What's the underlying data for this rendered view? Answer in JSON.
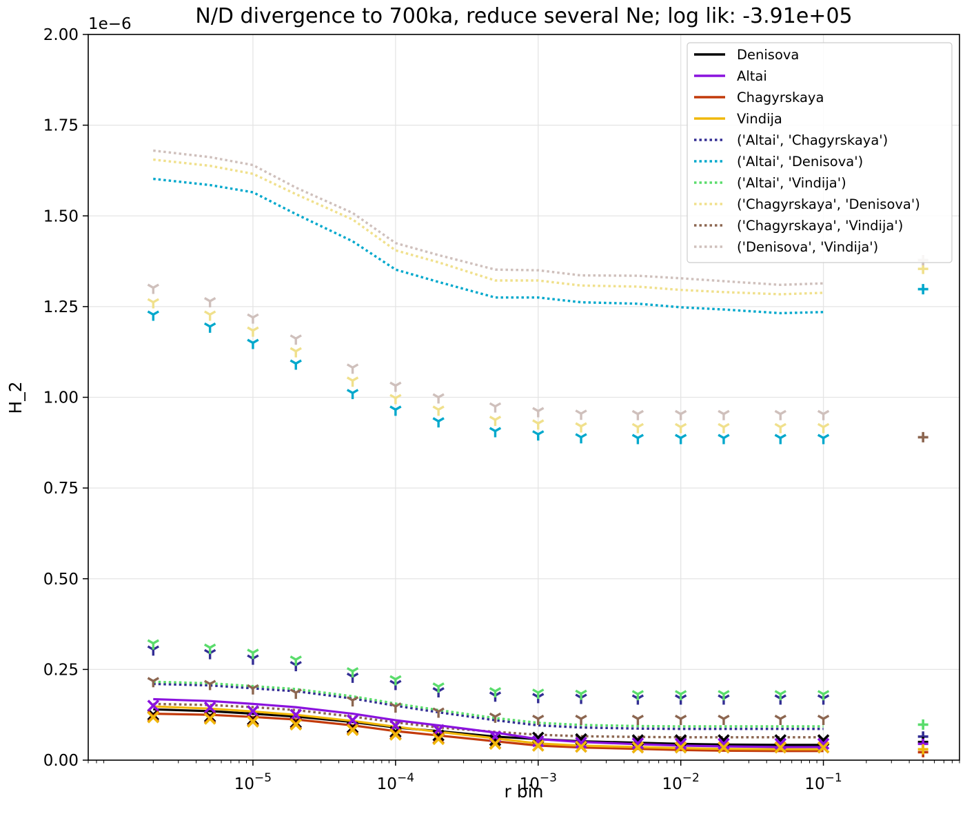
{
  "chart_data": {
    "type": "line",
    "title": "N/D divergence to 700ka, reduce several Ne; log lik: -3.91e+05",
    "xlabel": "r bin",
    "ylabel": "H_2",
    "y_offset_label": "1e−6",
    "xscale": "log",
    "xlim": [
      7e-07,
      0.9
    ],
    "ylim": [
      0,
      2.0
    ],
    "y_unit_multiplier": 1e-06,
    "grid": true,
    "legend_position": "upper right",
    "x_ticks": [
      {
        "value": 1e-05,
        "base": "10",
        "exp": "−5"
      },
      {
        "value": 0.0001,
        "base": "10",
        "exp": "−4"
      },
      {
        "value": 0.001,
        "base": "10",
        "exp": "−3"
      },
      {
        "value": 0.01,
        "base": "10",
        "exp": "−2"
      },
      {
        "value": 0.1,
        "base": "10",
        "exp": "−1"
      }
    ],
    "y_ticks": [
      "0.00",
      "0.25",
      "0.50",
      "0.75",
      "1.00",
      "1.25",
      "1.50",
      "1.75",
      "2.00"
    ],
    "x": [
      2e-06,
      5e-06,
      1e-05,
      2e-05,
      5e-05,
      0.0001,
      0.0002,
      0.0005,
      0.001,
      0.002,
      0.005,
      0.01,
      0.02,
      0.05,
      0.1
    ],
    "unlinked_x": 0.5,
    "series": [
      {
        "name": "Denisova",
        "color": "#000000",
        "style": "solid",
        "marker": "x",
        "model": [
          0.14,
          0.135,
          0.128,
          0.12,
          0.105,
          0.09,
          0.08,
          0.065,
          0.058,
          0.052,
          0.048,
          0.045,
          0.043,
          0.042,
          0.042
        ],
        "data": [
          0.125,
          0.12,
          0.112,
          0.104,
          0.09,
          0.078,
          0.068,
          0.055,
          0.062,
          0.058,
          0.055,
          0.055,
          0.055,
          0.055,
          0.055
        ],
        "unlinked_data": 0.05
      },
      {
        "name": "Altai",
        "color": "#8a12de",
        "style": "solid",
        "marker": "x",
        "model": [
          0.168,
          0.163,
          0.155,
          0.146,
          0.128,
          0.11,
          0.096,
          0.076,
          0.058,
          0.05,
          0.044,
          0.04,
          0.038,
          0.036,
          0.036
        ],
        "data": [
          0.15,
          0.145,
          0.135,
          0.125,
          0.11,
          0.095,
          0.083,
          0.065,
          0.052,
          0.048,
          0.046,
          0.045,
          0.045,
          0.045,
          0.045
        ],
        "unlinked_data": 0.045
      },
      {
        "name": "Chagyrskaya",
        "color": "#c23a0a",
        "style": "solid",
        "marker": "x",
        "model": [
          0.128,
          0.125,
          0.119,
          0.112,
          0.096,
          0.08,
          0.068,
          0.052,
          0.04,
          0.035,
          0.031,
          0.028,
          0.026,
          0.025,
          0.025
        ],
        "data": [
          0.12,
          0.116,
          0.108,
          0.1,
          0.085,
          0.072,
          0.06,
          0.046,
          0.04,
          0.037,
          0.035,
          0.035,
          0.035,
          0.035,
          0.035
        ],
        "unlinked_data": 0.022
      },
      {
        "name": "Vindija",
        "color": "#f0b80c",
        "style": "solid",
        "marker": "x",
        "model": [
          0.148,
          0.142,
          0.134,
          0.125,
          0.108,
          0.092,
          0.078,
          0.06,
          0.046,
          0.04,
          0.036,
          0.033,
          0.031,
          0.03,
          0.03
        ],
        "data": [
          0.118,
          0.114,
          0.106,
          0.098,
          0.083,
          0.07,
          0.058,
          0.045,
          0.04,
          0.037,
          0.035,
          0.035,
          0.035,
          0.035,
          0.035
        ],
        "unlinked_data": 0.03
      },
      {
        "name": "('Altai', 'Chagyrskaya')",
        "color": "#332e94",
        "style": "dotted",
        "marker": "tri_down",
        "model": [
          0.21,
          0.206,
          0.198,
          0.19,
          0.17,
          0.15,
          0.132,
          0.11,
          0.096,
          0.09,
          0.087,
          0.086,
          0.086,
          0.086,
          0.086
        ],
        "data": [
          0.305,
          0.295,
          0.28,
          0.262,
          0.23,
          0.21,
          0.19,
          0.178,
          0.174,
          0.172,
          0.17,
          0.17,
          0.17,
          0.17,
          0.17
        ],
        "unlinked_data": 0.065
      },
      {
        "name": "('Altai', 'Denisova')",
        "color": "#00a8cc",
        "style": "dotted",
        "marker": "tri_down",
        "model": [
          1.602,
          1.585,
          1.565,
          1.505,
          1.43,
          1.352,
          1.318,
          1.275,
          1.275,
          1.262,
          1.258,
          1.248,
          1.242,
          1.232,
          1.235
        ],
        "data": [
          1.228,
          1.195,
          1.15,
          1.093,
          1.012,
          0.966,
          0.934,
          0.907,
          0.898,
          0.89,
          0.888,
          0.888,
          0.888,
          0.888,
          0.888
        ],
        "unlinked_data": 1.298
      },
      {
        "name": "('Altai', 'Vindija')",
        "color": "#5adc6c",
        "style": "dotted",
        "marker": "tri_down",
        "model": [
          0.216,
          0.212,
          0.204,
          0.196,
          0.176,
          0.156,
          0.138,
          0.116,
          0.103,
          0.097,
          0.094,
          0.093,
          0.093,
          0.093,
          0.093
        ],
        "data": [
          0.322,
          0.31,
          0.296,
          0.277,
          0.245,
          0.223,
          0.203,
          0.19,
          0.186,
          0.183,
          0.182,
          0.182,
          0.182,
          0.182,
          0.182
        ],
        "unlinked_data": 0.098
      },
      {
        "name": "('Chagyrskaya', 'Denisova')",
        "color": "#f0e08c",
        "style": "dotted",
        "marker": "tri_down",
        "model": [
          1.655,
          1.638,
          1.616,
          1.56,
          1.49,
          1.405,
          1.372,
          1.322,
          1.322,
          1.308,
          1.305,
          1.296,
          1.29,
          1.284,
          1.288
        ],
        "data": [
          1.262,
          1.228,
          1.184,
          1.127,
          1.046,
          0.998,
          0.966,
          0.938,
          0.928,
          0.92,
          0.918,
          0.918,
          0.918,
          0.918,
          0.918
        ],
        "unlinked_data": 1.354
      },
      {
        "name": "('Chagyrskaya', 'Vindija')",
        "color": "#8c6650",
        "style": "dotted",
        "marker": "tri_down",
        "model": [
          0.155,
          0.152,
          0.146,
          0.138,
          0.12,
          0.104,
          0.09,
          0.078,
          0.07,
          0.066,
          0.064,
          0.063,
          0.063,
          0.063,
          0.063
        ],
        "data": [
          0.218,
          0.21,
          0.198,
          0.186,
          0.165,
          0.148,
          0.134,
          0.12,
          0.114,
          0.114,
          0.114,
          0.114,
          0.114,
          0.114,
          0.114
        ],
        "unlinked_data": 0.89
      },
      {
        "name": "('Denisova', 'Vindija')",
        "color": "#cfc0bc",
        "style": "dotted",
        "marker": "tri_down",
        "model": [
          1.68,
          1.662,
          1.64,
          1.578,
          1.508,
          1.425,
          1.392,
          1.352,
          1.35,
          1.336,
          1.335,
          1.328,
          1.32,
          1.31,
          1.314
        ],
        "data": [
          1.302,
          1.265,
          1.22,
          1.162,
          1.082,
          1.032,
          1.0,
          0.975,
          0.962,
          0.955,
          0.954,
          0.954,
          0.954,
          0.954,
          0.954
        ],
        "unlinked_data": 1.378
      }
    ]
  }
}
